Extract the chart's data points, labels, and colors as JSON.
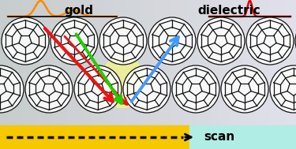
{
  "gold_label": "gold",
  "dielectric_label": "dielectric",
  "scan_label": "scan",
  "bg_left_color": "#c8c8c8",
  "bg_right_color": "#d8e8e8",
  "gold_color": "#f5c800",
  "dielectric_color": "#b0ede4",
  "orange_spec_color": "#ff8800",
  "red_spec_color": "#dd0000",
  "red_arrow_color": "#ee1111",
  "green_arrow_color": "#22cc00",
  "blue_arrow_color": "#4499ff",
  "scan_dash_color": "#111111",
  "glow_color": "#f8f880",
  "ball_edge_color": "#111111",
  "ball_fill_color": "#ffffff",
  "font_size_labels": 11,
  "font_size_scan": 11,
  "figw": 3.75,
  "figh": 1.89,
  "dpi": 100
}
